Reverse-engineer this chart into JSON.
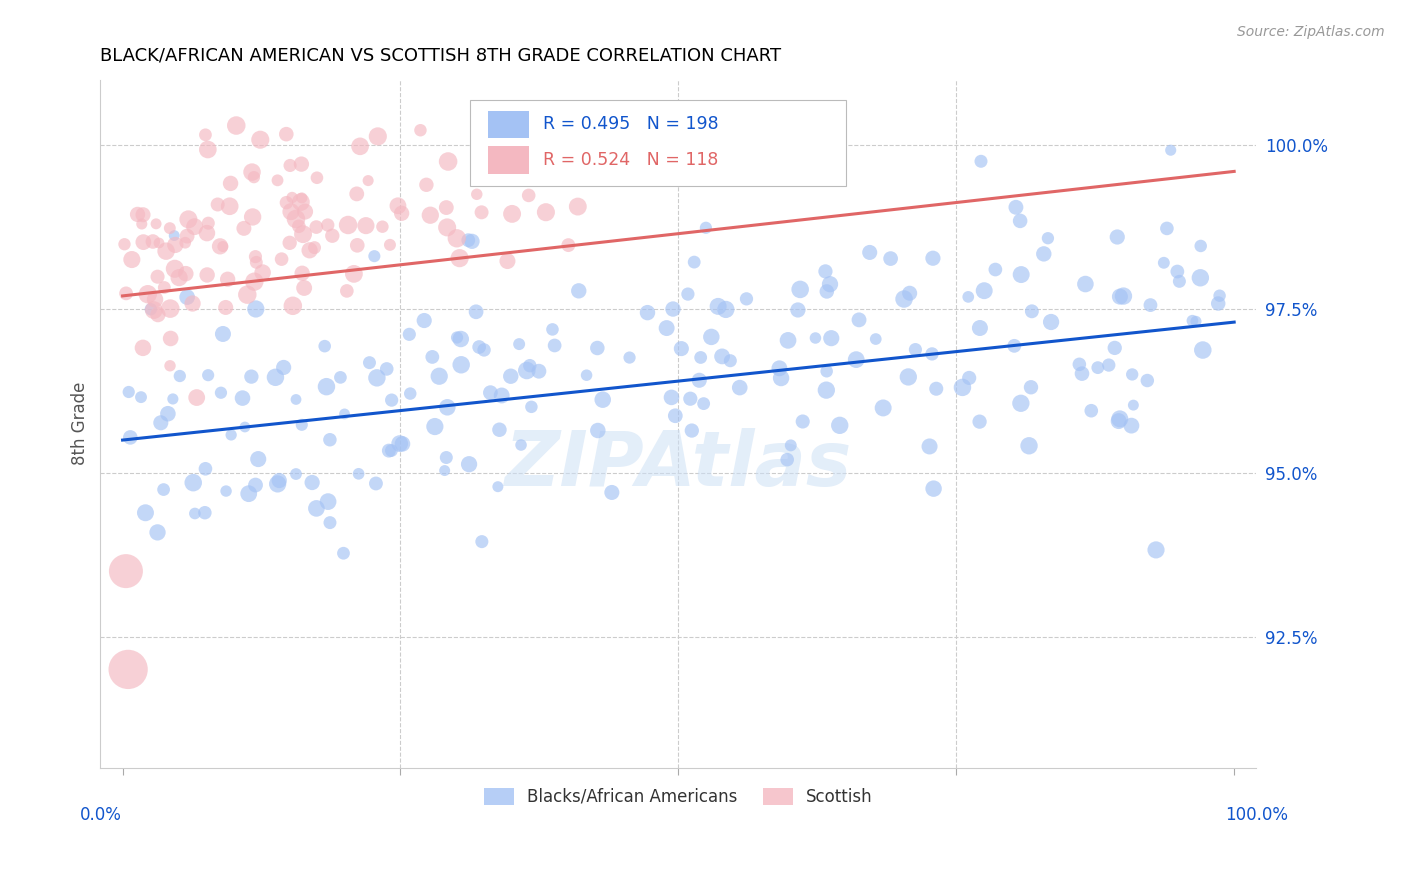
{
  "title": "BLACK/AFRICAN AMERICAN VS SCOTTISH 8TH GRADE CORRELATION CHART",
  "source": "Source: ZipAtlas.com",
  "ylabel": "8th Grade",
  "ytick_labels": [
    "92.5%",
    "95.0%",
    "97.5%",
    "100.0%"
  ],
  "ytick_values": [
    0.925,
    0.95,
    0.975,
    1.0
  ],
  "xlim": [
    -0.02,
    1.02
  ],
  "ylim": [
    0.905,
    1.01
  ],
  "blue_R": 0.495,
  "blue_N": 198,
  "pink_R": 0.524,
  "pink_N": 118,
  "blue_color": "#a4c2f4",
  "pink_color": "#f4b8c1",
  "blue_line_color": "#1155cc",
  "pink_line_color": "#e06666",
  "legend_label_blue": "Blacks/African Americans",
  "legend_label_pink": "Scottish",
  "watermark": "ZIPAtlas",
  "title_color": "#000000",
  "tick_label_color": "#1155cc",
  "background_color": "#ffffff",
  "blue_seed": 42,
  "pink_seed": 17,
  "blue_line_x0": 0.0,
  "blue_line_y0": 0.955,
  "blue_line_x1": 1.0,
  "blue_line_y1": 0.973,
  "pink_line_x0": 0.0,
  "pink_line_y0": 0.977,
  "pink_line_x1": 1.0,
  "pink_line_y1": 0.996
}
